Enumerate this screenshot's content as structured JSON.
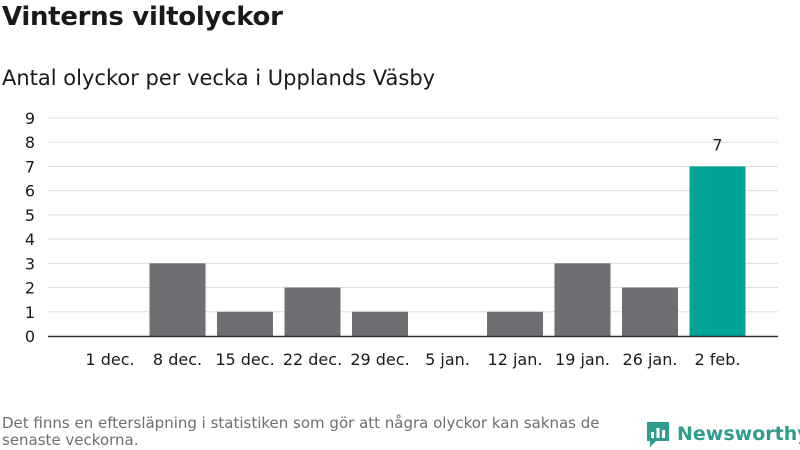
{
  "header": {
    "title": "Vinterns viltolyckor",
    "subtitle": "Antal olyckor per vecka i Upplands Väsby"
  },
  "footer": {
    "note": "Det finns en eftersläpning i statistiken som gör att några olyckor kan saknas de senaste veckorna.",
    "brand_name": "Newsworthy"
  },
  "colors": {
    "bar": "#6e6e73",
    "highlight": "#00a396",
    "grid": "#dddddd",
    "axis": "#333333",
    "brand": "#2e9c8e"
  },
  "chart_data": {
    "type": "bar",
    "categories": [
      "1 dec.",
      "8 dec.",
      "15 dec.",
      "22 dec.",
      "29 dec.",
      "5 jan.",
      "12 jan.",
      "19 jan.",
      "26 jan.",
      "2 feb."
    ],
    "values": [
      0,
      3,
      1,
      2,
      1,
      0,
      1,
      3,
      2,
      7
    ],
    "highlight_index": 9,
    "data_labels": [
      {
        "index": 9,
        "text": "7"
      }
    ],
    "y_ticks": [
      0,
      1,
      2,
      3,
      4,
      5,
      6,
      7,
      8,
      9
    ],
    "ylim": [
      0,
      9
    ],
    "grid": true,
    "legend": "none"
  }
}
